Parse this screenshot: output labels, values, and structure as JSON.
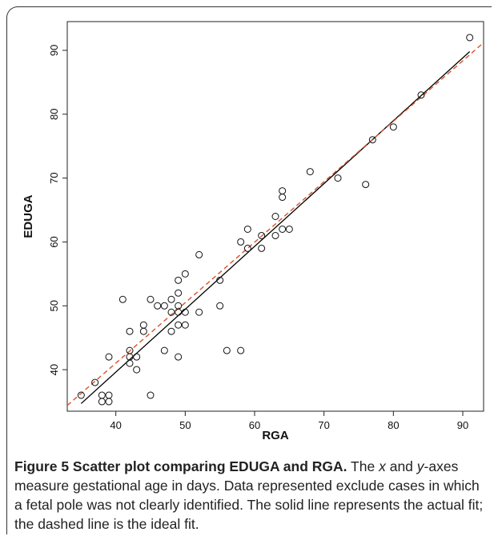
{
  "caption": {
    "label": "Figure 5 Scatter plot comparing EDUGA and RGA.",
    "text_parts": [
      " The ",
      "x",
      " and ",
      "y",
      "-axes measure gestational age in days. Data represented exclude cases in which a fetal pole was not clearly identified. The solid line represents the actual fit; the dashed line is the ideal fit."
    ]
  },
  "colors": {
    "points": "#111111",
    "actual_fit": "#000000",
    "ideal_fit": "#d9522b"
  },
  "chart_data": {
    "type": "scatter",
    "xlabel": "RGA",
    "ylabel": "EDUGA",
    "xlim": [
      33,
      93
    ],
    "ylim": [
      33.5,
      94.5
    ],
    "xticks": [
      40,
      50,
      60,
      70,
      80,
      90
    ],
    "yticks": [
      40,
      50,
      60,
      70,
      80,
      90
    ],
    "grid": false,
    "points": [
      [
        35,
        36
      ],
      [
        37,
        38
      ],
      [
        38,
        36
      ],
      [
        38,
        35
      ],
      [
        39,
        36
      ],
      [
        39,
        35
      ],
      [
        39,
        42
      ],
      [
        41,
        51
      ],
      [
        42,
        46
      ],
      [
        42,
        43
      ],
      [
        42,
        42
      ],
      [
        42,
        41
      ],
      [
        43,
        42
      ],
      [
        43,
        40
      ],
      [
        44,
        47
      ],
      [
        44,
        46
      ],
      [
        45,
        51
      ],
      [
        45,
        36
      ],
      [
        46,
        50
      ],
      [
        47,
        50
      ],
      [
        47,
        43
      ],
      [
        48,
        51
      ],
      [
        48,
        49
      ],
      [
        48,
        46
      ],
      [
        49,
        54
      ],
      [
        49,
        52
      ],
      [
        49,
        50
      ],
      [
        49,
        49
      ],
      [
        49,
        47
      ],
      [
        49,
        42
      ],
      [
        50,
        55
      ],
      [
        50,
        49
      ],
      [
        50,
        47
      ],
      [
        52,
        58
      ],
      [
        52,
        49
      ],
      [
        55,
        54
      ],
      [
        55,
        50
      ],
      [
        56,
        43
      ],
      [
        58,
        60
      ],
      [
        58,
        43
      ],
      [
        59,
        62
      ],
      [
        59,
        59
      ],
      [
        61,
        61
      ],
      [
        61,
        59
      ],
      [
        63,
        64
      ],
      [
        63,
        61
      ],
      [
        64,
        68
      ],
      [
        64,
        67
      ],
      [
        64,
        62
      ],
      [
        65,
        62
      ],
      [
        68,
        71
      ],
      [
        72,
        70
      ],
      [
        76,
        69
      ],
      [
        77,
        76
      ],
      [
        80,
        78
      ],
      [
        84,
        83
      ],
      [
        91,
        92
      ]
    ],
    "lines": [
      {
        "style": "solid",
        "x": [
          35,
          91
        ],
        "y": [
          34.7,
          89.8
        ]
      },
      {
        "style": "dashed",
        "x": [
          33,
          93
        ],
        "y": [
          34.4,
          91.2
        ]
      }
    ]
  }
}
